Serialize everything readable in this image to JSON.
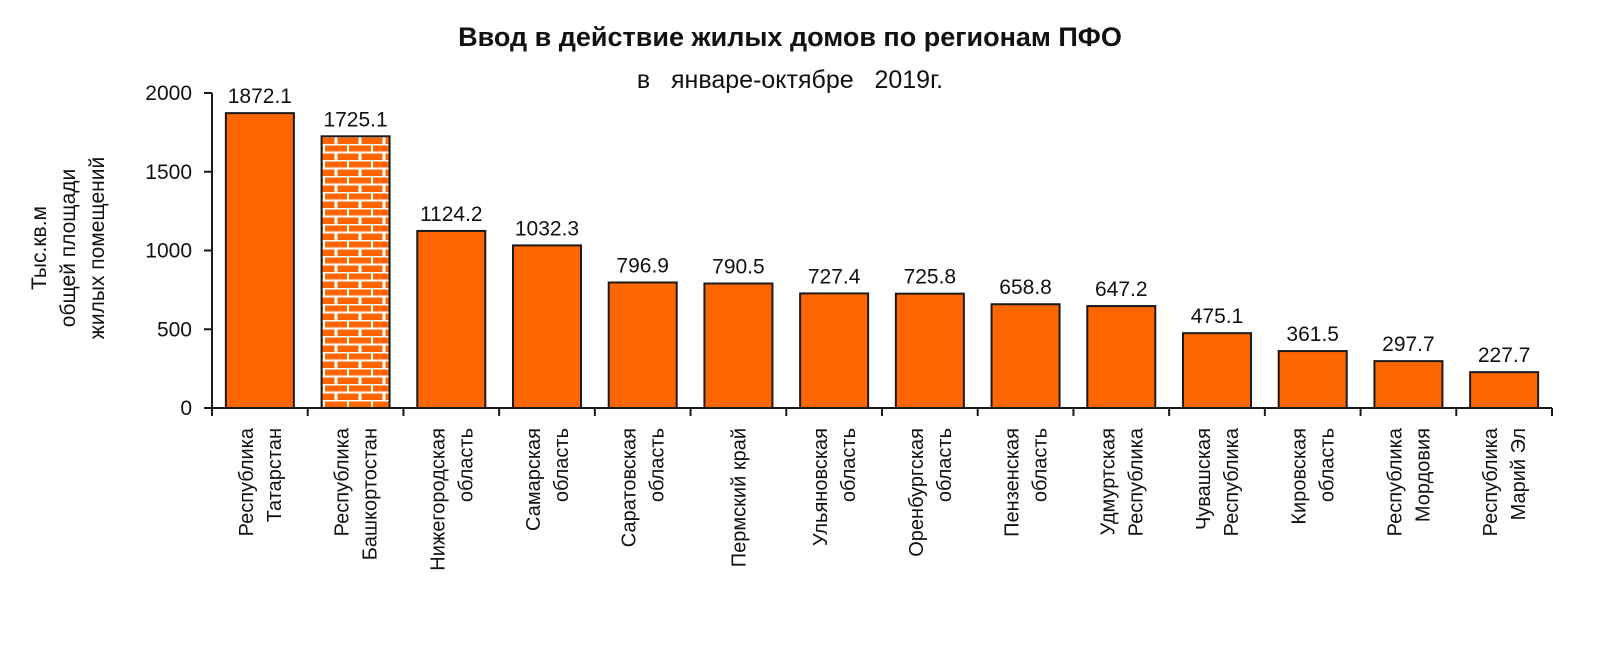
{
  "chart_data": {
    "type": "bar",
    "title": "Ввод в действие жилых домов по регионам ПФО",
    "subtitle": "в   январе-октябре   2019г.",
    "ylabel_lines": [
      "Тыс.кв.м",
      "общей площади",
      "жилых помещений"
    ],
    "ylim": [
      0,
      2000
    ],
    "yticks": [
      "0",
      "500",
      "1000",
      "1500",
      "2000"
    ],
    "ytick_values": [
      0,
      500,
      1000,
      1500,
      2000
    ],
    "grid": false,
    "legend": "none",
    "categories": [
      [
        "Республика",
        "Татарстан"
      ],
      [
        "Республика",
        "Башкортостан"
      ],
      [
        "Нижегородская",
        "область"
      ],
      [
        "Самарская",
        "область"
      ],
      [
        "Саратовская",
        "область"
      ],
      [
        "Пермский край"
      ],
      [
        "Ульяновская",
        "область"
      ],
      [
        "Оренбургская",
        "область"
      ],
      [
        "Пензенская",
        "область"
      ],
      [
        "Удмуртская",
        "Республика"
      ],
      [
        "Чувашская",
        "Республика"
      ],
      [
        "Кировская",
        "область"
      ],
      [
        "Республика",
        "Мордовия"
      ],
      [
        "Республика",
        "Марий Эл"
      ]
    ],
    "values": [
      1872.1,
      1725.1,
      1124.2,
      1032.3,
      796.9,
      790.5,
      727.4,
      725.8,
      658.8,
      647.2,
      475.1,
      361.5,
      297.7,
      227.7
    ],
    "value_labels": [
      "1872.1",
      "1725.1",
      "1124.2",
      "1032.3",
      "796.9",
      "790.5",
      "727.4",
      "725.8",
      "658.8",
      "647.2",
      "475.1",
      "361.5",
      "297.7",
      "227.7"
    ],
    "highlight_index": 1,
    "colors": {
      "bar": "#ff6600",
      "bar_outline": "#1a1a1a",
      "highlight_brick": "#ff6600",
      "highlight_mortar": "#ffffff",
      "axis": "#1a1a1a",
      "text": "#111111"
    }
  }
}
